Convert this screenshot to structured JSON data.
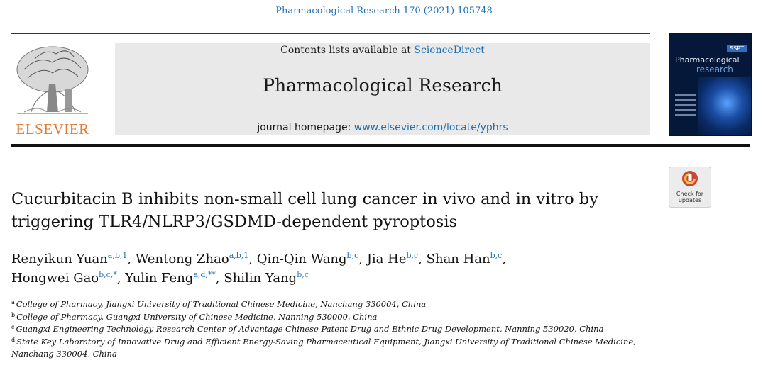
{
  "header": {
    "journal_ref": "Pharmacological Research 170 (2021) 105748",
    "contents_prefix": "Contents lists available at ",
    "contents_link": "ScienceDirect",
    "journal_title": "Pharmacological Research",
    "homepage_prefix": "journal homepage: ",
    "homepage_link": "www.elsevier.com/locate/yphrs",
    "publisher_logo_text": "ELSEVIER",
    "cover": {
      "badge": "SSPT",
      "title_line1": "Pharmacological",
      "title_line2": "research"
    }
  },
  "check_updates": {
    "line1": "Check for",
    "line2": "updates"
  },
  "article": {
    "title": "Cucurbitacin B inhibits non-small cell lung cancer in vivo and in vitro by triggering TLR4/NLRP3/GSDMD-dependent pyroptosis",
    "authors": [
      {
        "name": "Renyikun Yuan",
        "sup": "a,b,1",
        "sep": ", "
      },
      {
        "name": "Wentong Zhao",
        "sup": "a,b,1",
        "sep": ", "
      },
      {
        "name": "Qin-Qin Wang",
        "sup": "b,c",
        "sep": ", "
      },
      {
        "name": "Jia He",
        "sup": "b,c",
        "sep": ", "
      },
      {
        "name": "Shan Han",
        "sup": "b,c",
        "sep": ","
      },
      {
        "name": "Hongwei Gao",
        "sup": "b,c,*",
        "sep": ", "
      },
      {
        "name": "Yulin Feng",
        "sup": "a,d,**",
        "sep": ", "
      },
      {
        "name": "Shilin Yang",
        "sup": "b,c",
        "sep": ""
      }
    ],
    "affiliations": [
      {
        "key": "a",
        "text": "College of Pharmacy, Jiangxi University of Traditional Chinese Medicine, Nanchang 330004, China"
      },
      {
        "key": "b",
        "text": "College of Pharmacy, Guangxi University of Chinese Medicine, Nanning 530000, China"
      },
      {
        "key": "c",
        "text": "Guangxi Engineering Technology Research Center of Advantage Chinese Patent Drug and Ethnic Drug Development, Nanning 530020, China"
      },
      {
        "key": "d",
        "text": "State Key Laboratory of Innovative Drug and Efficient Energy-Saving Pharmaceutical Equipment, Jiangxi University of Traditional Chinese Medicine, Nanchang 330004, China"
      }
    ]
  },
  "colors": {
    "link": "#1f6fb5",
    "elsevier_orange": "#e8762c",
    "banner_bg": "#e9e9e9"
  }
}
